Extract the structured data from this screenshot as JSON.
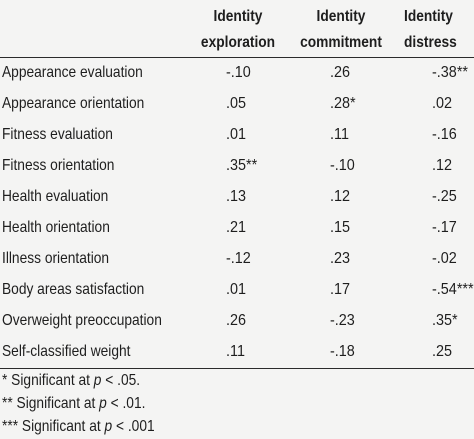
{
  "header": {
    "col1_line1": "Identity",
    "col1_line2": "exploration",
    "col2_line1": "Identity",
    "col2_line2": "commitment",
    "col3_line1": "Identity",
    "col3_line2": "distress"
  },
  "rows": [
    {
      "label": "Appearance evaluation",
      "exploration": "-.10",
      "commitment": ".26",
      "distress": "-.38**"
    },
    {
      "label": "Appearance orientation",
      "exploration": ".05",
      "commitment": ".28*",
      "distress": ".02"
    },
    {
      "label": "Fitness evaluation",
      "exploration": ".01",
      "commitment": ".11",
      "distress": "-.16"
    },
    {
      "label": "Fitness orientation",
      "exploration": ".35**",
      "commitment": "-.10",
      "distress": ".12"
    },
    {
      "label": "Health evaluation",
      "exploration": ".13",
      "commitment": ".12",
      "distress": "-.25"
    },
    {
      "label": "Health orientation",
      "exploration": ".21",
      "commitment": ".15",
      "distress": "-.17"
    },
    {
      "label": "Illness orientation",
      "exploration": "-.12",
      "commitment": ".23",
      "distress": "-.02"
    },
    {
      "label": "Body areas satisfaction",
      "exploration": ".01",
      "commitment": ".17",
      "distress": "-.54***"
    },
    {
      "label": "Overweight preoccupation",
      "exploration": ".26",
      "commitment": "-.23",
      "distress": ".35*"
    },
    {
      "label": "Self-classified weight",
      "exploration": ".11",
      "commitment": "-.18",
      "distress": ".25"
    }
  ],
  "footnotes": [
    {
      "prefix": "* Significant at ",
      "p": "p",
      "suffix": " < .05."
    },
    {
      "prefix": "** Significant at ",
      "p": "p",
      "suffix": " < .01."
    },
    {
      "prefix": "*** Significant at ",
      "p": "p",
      "suffix": " < .001"
    }
  ]
}
